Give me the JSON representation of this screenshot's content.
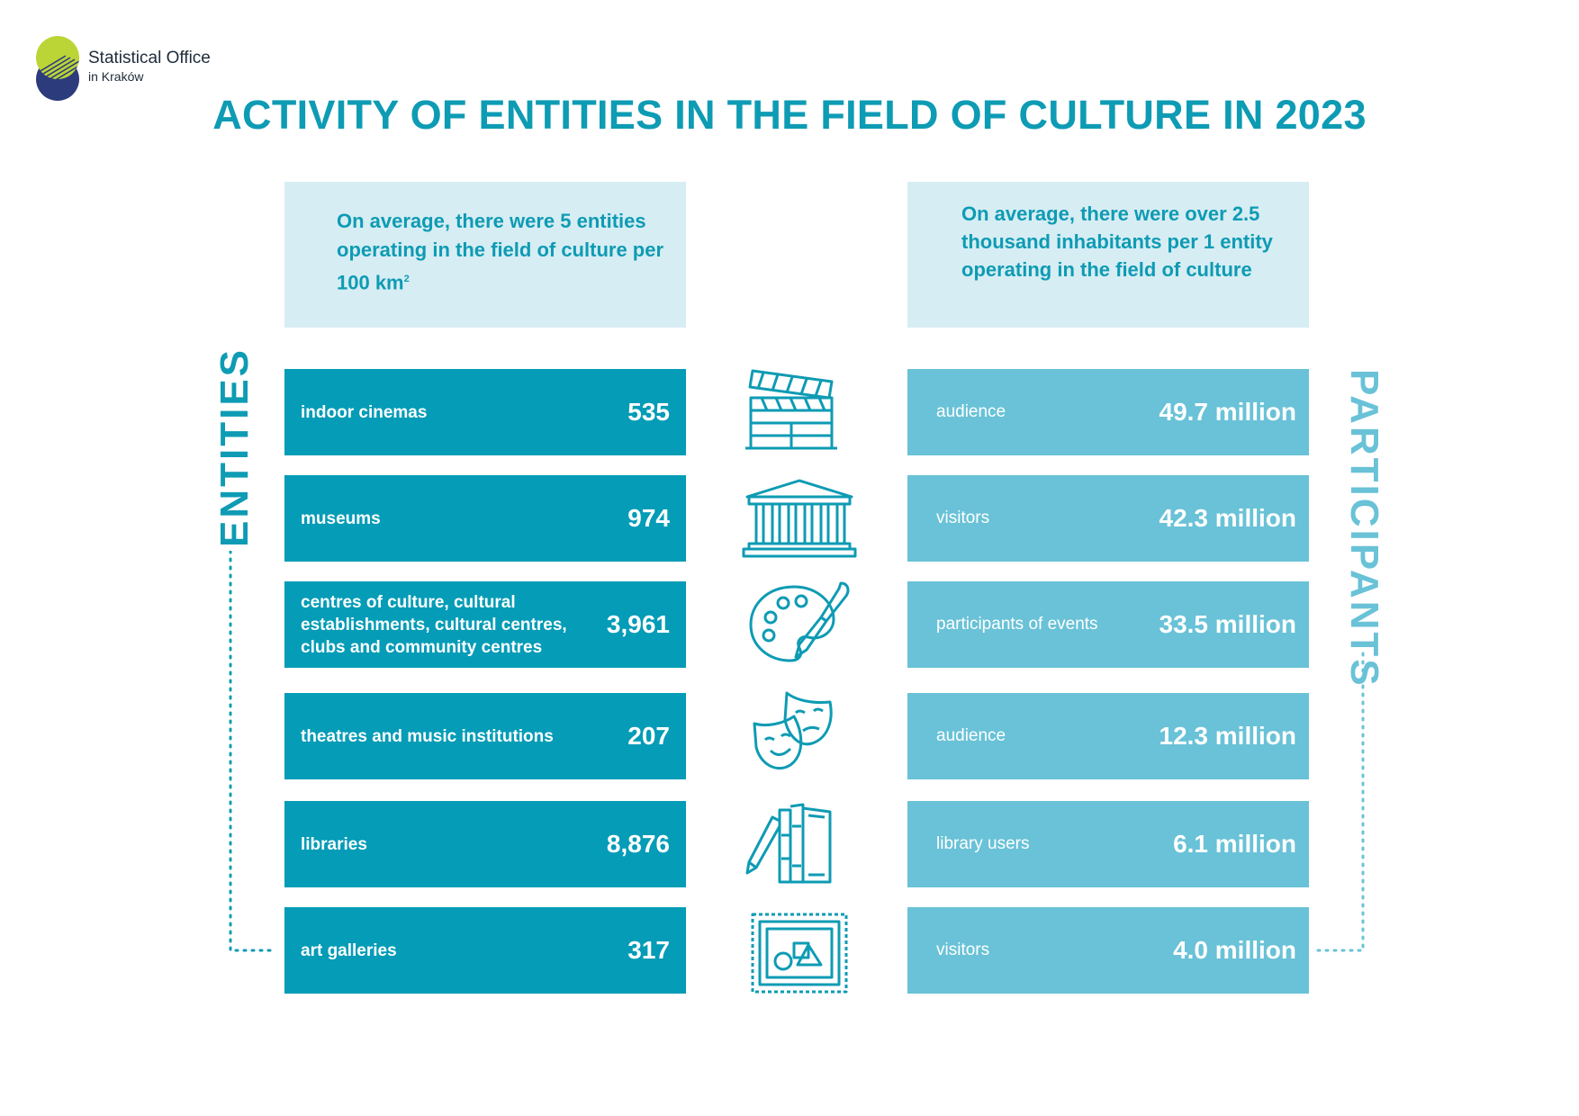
{
  "logo": {
    "line1": "Statistical Office",
    "line2": "in Kraków"
  },
  "title": "ACTIVITY OF ENTITIES IN THE FIELD OF CULTURE IN 2023",
  "info_left": {
    "text": "On average, there were 5 entities operating in the field of culture per 100 km",
    "sup": "2"
  },
  "info_right": {
    "text": "On average, there were over 2.5 thousand inhabitants per 1 entity operating in the field of culture"
  },
  "side_labels": {
    "left": "ENTITIES",
    "right": "PARTICIPANTS"
  },
  "rows": [
    {
      "entity": "indoor cinemas",
      "count": "535",
      "icon": "film-clapperboard-icon",
      "participant": "audience",
      "participants": "49.7 million"
    },
    {
      "entity": "museums",
      "count": "974",
      "icon": "museum-building-icon",
      "participant": "visitors",
      "participants": "42.3 million"
    },
    {
      "entity": "centres of culture, cultural establishments, cultural centres, clubs and community centres",
      "count": "3,961",
      "icon": "paint-palette-icon",
      "participant": "participants of events",
      "participants": "33.5 million"
    },
    {
      "entity": "theatres and music institutions",
      "count": "207",
      "icon": "theatre-masks-icon",
      "participant": "audience",
      "participants": "12.3 million"
    },
    {
      "entity": "libraries",
      "count": "8,876",
      "icon": "books-icon",
      "participant": "library users",
      "participants": "6.1 million"
    },
    {
      "entity": "art galleries",
      "count": "317",
      "icon": "art-frame-icon",
      "participant": "visitors",
      "participants": "4.0 million"
    }
  ],
  "colors": {
    "primary": "#0e9bb4",
    "card_dark": "#049cb7",
    "card_light": "#69c2d7",
    "info_bg": "#d6edf3",
    "logo_green": "#bcd536",
    "logo_navy": "#2c3b7c"
  }
}
